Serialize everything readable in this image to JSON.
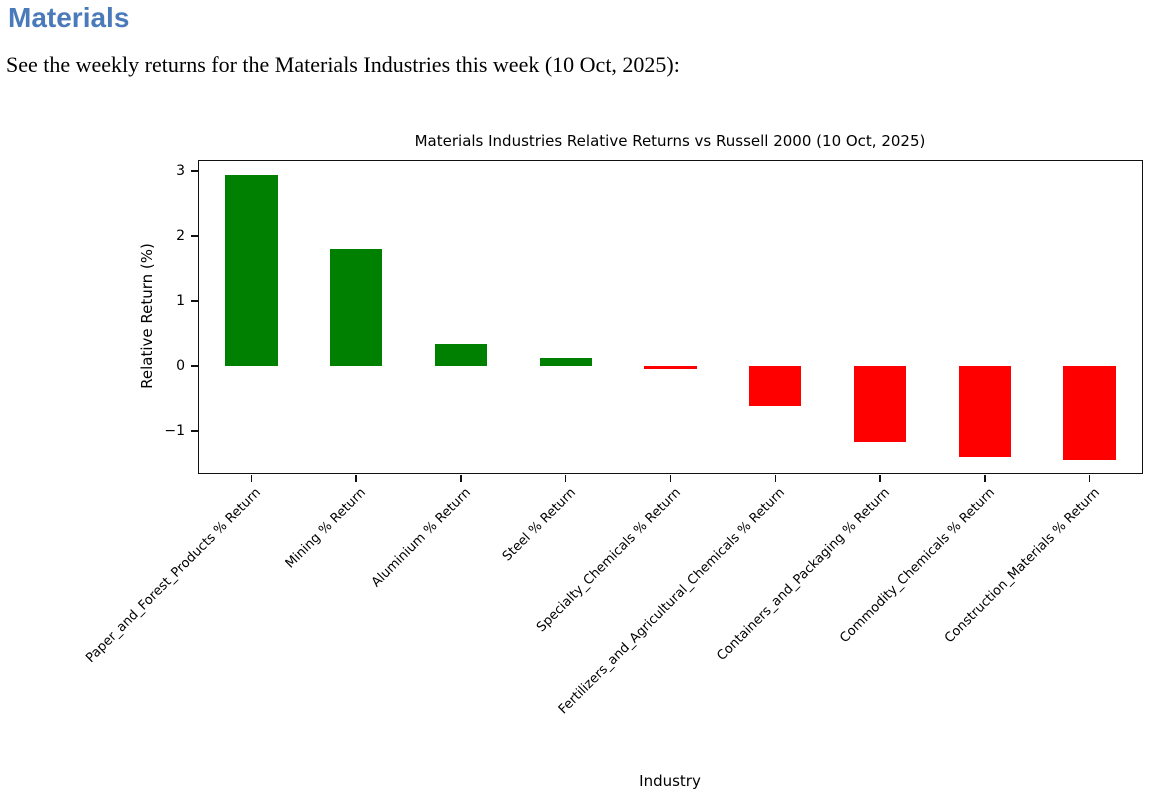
{
  "page": {
    "heading": "Materials",
    "description": "See the weekly returns for the Materials Industries this week (10 Oct, 2025):"
  },
  "colors": {
    "heading_blue": "#4a7aba",
    "positive": "#008000",
    "negative": "#ff0000"
  },
  "chart_data": {
    "type": "bar",
    "title": "Materials Industries Relative Returns vs Russell 2000 (10 Oct, 2025)",
    "xlabel": "Industry",
    "ylabel": "Relative Return (%)",
    "categories": [
      "Paper_and_Forest_Products % Return",
      "Mining % Return",
      "Aluminium % Return",
      "Steel % Return",
      "Specialty_Chemicals % Return",
      "Fertilizers_and_Agricultural_Chemicals % Return",
      "Containers_and_Packaging % Return",
      "Commodity_Chemicals % Return",
      "Construction_Materials % Return"
    ],
    "values": [
      2.93,
      1.8,
      0.34,
      0.12,
      -0.05,
      -0.62,
      -1.18,
      -1.41,
      -1.45
    ],
    "positive_color": "#008000",
    "negative_color": "#ff0000",
    "yticks": [
      3,
      2,
      1,
      0,
      -1
    ],
    "ylim": [
      -1.65,
      3.15
    ],
    "grid": false,
    "legend": "none",
    "bar_width_ratio": 0.5,
    "tick_label_rotation_deg": 45
  }
}
